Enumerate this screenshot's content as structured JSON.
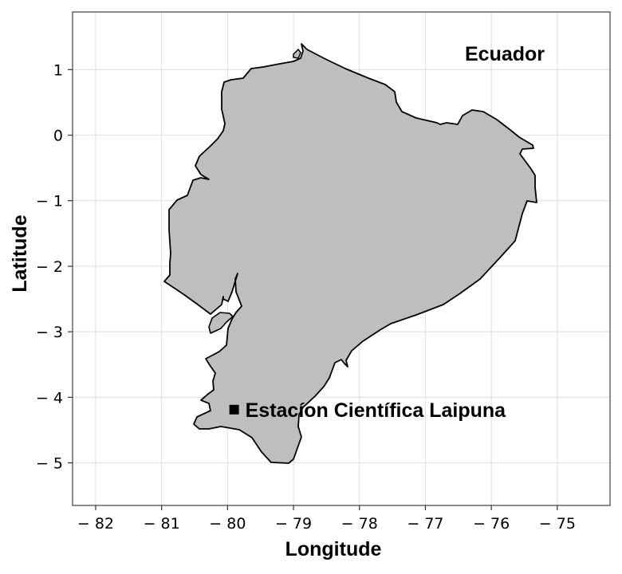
{
  "map": {
    "country_label": "Ecuador",
    "site_label": "Estacíon Científica Laipuna",
    "site_marker": "square-marker",
    "x_axis_title": "Longitude",
    "y_axis_title": "Latitude",
    "land_fill": "#bebebe",
    "border_color": "#000000",
    "grid_color": "#e3e3e3",
    "x_range": [
      -82.35,
      -74.2
    ],
    "y_range": [
      -5.65,
      1.88
    ],
    "x_ticks": [
      {
        "value": -82,
        "label": "− 82"
      },
      {
        "value": -81,
        "label": "− 81"
      },
      {
        "value": -80,
        "label": "− 80"
      },
      {
        "value": -79,
        "label": "− 79"
      },
      {
        "value": -78,
        "label": "− 78"
      },
      {
        "value": -77,
        "label": "− 77"
      },
      {
        "value": -76,
        "label": "− 76"
      },
      {
        "value": -75,
        "label": "− 75"
      }
    ],
    "y_ticks": [
      {
        "value": 1,
        "label": "1"
      },
      {
        "value": 0,
        "label": "0"
      },
      {
        "value": -1,
        "label": "− 1"
      },
      {
        "value": -2,
        "label": "− 2"
      },
      {
        "value": -3,
        "label": "− 3"
      },
      {
        "value": -4,
        "label": "− 4"
      },
      {
        "value": -5,
        "label": "− 5"
      }
    ],
    "site_location": {
      "longitude": -79.9,
      "latitude": -4.2
    }
  }
}
